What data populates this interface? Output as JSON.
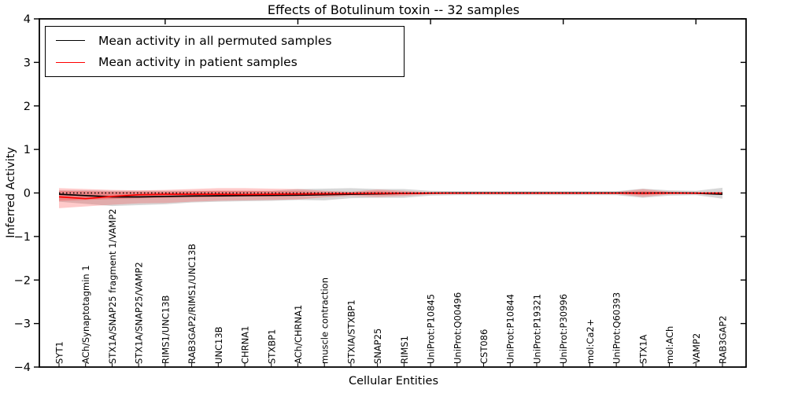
{
  "figure": {
    "title": "Effects of Botulinum toxin -- 32 samples"
  },
  "chart_data": {
    "type": "line",
    "title": "Effects of Botulinum toxin -- 32 samples",
    "xlabel": "Cellular Entities",
    "ylabel": "Inferred Activity",
    "ylim": [
      -4,
      4
    ],
    "yticks": [
      4,
      3,
      2,
      1,
      0,
      -1,
      -2,
      -3,
      -4
    ],
    "ytick_labels": [
      "4",
      "3",
      "2",
      "1",
      "0",
      "−1",
      "−2",
      "−3",
      "−4"
    ],
    "grid": false,
    "legend": {
      "position": "upper left",
      "entries": [
        {
          "label": "Mean activity in all permuted samples",
          "color": "#000000"
        },
        {
          "label": "Mean activity in patient samples",
          "color": "#ff0000"
        }
      ]
    },
    "categories": [
      "SYT1",
      "ACh/Synaptotagmin 1",
      "STX1A/SNAP25 fragment 1/VAMP2",
      "STX1A/SNAP25/VAMP2",
      "RIMS1/UNC13B",
      "RAB3GAP2/RIMS1/UNC13B",
      "UNC13B",
      "CHRNA1",
      "STXBP1",
      "ACh/CHRNA1",
      "muscle contraction",
      "STXIA/STXBP1",
      "SNAP25",
      "RIMS1",
      "UniProt:P10845",
      "UniProt:Q00496",
      "CST086",
      "UniProt:P10844",
      "UniProt:P19321",
      "UniProt:P30996",
      "mol:Ca2+",
      "UniProt:Q60393",
      "STX1A",
      "mol:ACh",
      "VAMP2",
      "RAB3GAP2"
    ],
    "series": [
      {
        "name": "Mean activity in all permuted samples",
        "color": "#000000",
        "style": "solid",
        "values": [
          -0.03,
          -0.06,
          -0.09,
          -0.09,
          -0.08,
          -0.07,
          -0.065,
          -0.06,
          -0.055,
          -0.05,
          -0.04,
          -0.03,
          -0.02,
          -0.01,
          -0.005,
          0,
          0,
          0,
          0,
          0,
          0,
          0,
          -0.005,
          0,
          -0.005,
          -0.03
        ]
      },
      {
        "name": "Mean activity in patient samples",
        "color": "#ff0000",
        "style": "solid",
        "values": [
          -0.09,
          -0.13,
          -0.08,
          -0.04,
          -0.03,
          -0.03,
          -0.03,
          -0.035,
          -0.03,
          -0.025,
          -0.02,
          -0.015,
          -0.01,
          -0.01,
          -0.005,
          -0.005,
          -0.005,
          -0.005,
          -0.005,
          -0.005,
          -0.005,
          -0.005,
          -0.005,
          -0.005,
          -0.005,
          -0.005
        ]
      },
      {
        "name": "zero baseline",
        "color": "#000000",
        "style": "dotted",
        "values": [
          0,
          0,
          0,
          0,
          0,
          0,
          0,
          0,
          0,
          0,
          0,
          0,
          0,
          0,
          0,
          0,
          0,
          0,
          0,
          0,
          0,
          0,
          0,
          0,
          0,
          0
        ]
      }
    ],
    "bands": [
      {
        "name": "permuted samples range",
        "color": "#9a9a9a",
        "opacity": 0.4,
        "upper": [
          0.06,
          0.06,
          0.05,
          0.05,
          0.05,
          0.05,
          0.05,
          0.05,
          0.05,
          0.09,
          0.1,
          0.11,
          0.09,
          0.09,
          0.05,
          0.04,
          0.04,
          0.04,
          0.04,
          0.04,
          0.04,
          0.04,
          0.1,
          0.06,
          0.05,
          0.12
        ],
        "lower": [
          -0.2,
          -0.25,
          -0.3,
          -0.28,
          -0.26,
          -0.22,
          -0.2,
          -0.19,
          -0.18,
          -0.16,
          -0.17,
          -0.12,
          -0.11,
          -0.11,
          -0.06,
          -0.05,
          -0.05,
          -0.05,
          -0.05,
          -0.05,
          -0.05,
          -0.05,
          -0.11,
          -0.06,
          -0.05,
          -0.13
        ]
      },
      {
        "name": "patient samples range outer",
        "color": "#ff2a2a",
        "opacity": 0.25,
        "upper": [
          0.11,
          0.09,
          0.07,
          0.06,
          0.07,
          0.09,
          0.11,
          0.11,
          0.1,
          0.09,
          0.05,
          0.03,
          0.08,
          0.05,
          0.02,
          0.02,
          0.02,
          0.02,
          0.02,
          0.02,
          0.02,
          0.02,
          0.09,
          0.03,
          0.02,
          0.02
        ],
        "lower": [
          -0.35,
          -0.31,
          -0.27,
          -0.24,
          -0.23,
          -0.2,
          -0.18,
          -0.17,
          -0.16,
          -0.15,
          -0.1,
          -0.07,
          -0.09,
          -0.07,
          -0.03,
          -0.02,
          -0.02,
          -0.02,
          -0.02,
          -0.02,
          -0.02,
          -0.02,
          -0.09,
          -0.03,
          -0.02,
          -0.02
        ]
      },
      {
        "name": "patient samples range inner",
        "color": "#ff2a2a",
        "opacity": 0.3,
        "upper": [
          0.05,
          0.04,
          0.03,
          0.03,
          0.03,
          0.04,
          0.05,
          0.05,
          0.04,
          0.04,
          0.02,
          0.015,
          0.04,
          0.02,
          0.01,
          0.01,
          0.01,
          0.01,
          0.01,
          0.01,
          0.01,
          0.01,
          0.04,
          0.015,
          0.01,
          0.01
        ],
        "lower": [
          -0.18,
          -0.16,
          -0.14,
          -0.12,
          -0.11,
          -0.1,
          -0.09,
          -0.08,
          -0.08,
          -0.07,
          -0.05,
          -0.035,
          -0.045,
          -0.035,
          -0.015,
          -0.01,
          -0.01,
          -0.01,
          -0.01,
          -0.01,
          -0.01,
          -0.01,
          -0.045,
          -0.015,
          -0.01,
          -0.01
        ]
      }
    ]
  }
}
